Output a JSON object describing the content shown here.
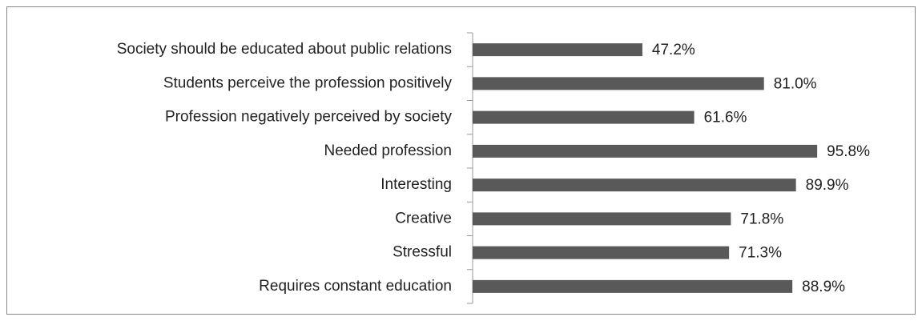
{
  "chart_data": {
    "type": "bar",
    "orientation": "horizontal",
    "categories": [
      "Society should be educated about public relations",
      "Students perceive the profession positively",
      "Profession negatively perceived by society",
      "Needed profession",
      "Interesting",
      "Creative",
      "Stressful",
      "Requires constant education"
    ],
    "values": [
      47.2,
      81.0,
      61.6,
      95.8,
      89.9,
      71.8,
      71.3,
      88.9
    ],
    "value_labels": [
      "47.2%",
      "81.0%",
      "61.6%",
      "95.8%",
      "89.9%",
      "71.8%",
      "71.3%",
      "88.9%"
    ],
    "color": "#595959"
  }
}
